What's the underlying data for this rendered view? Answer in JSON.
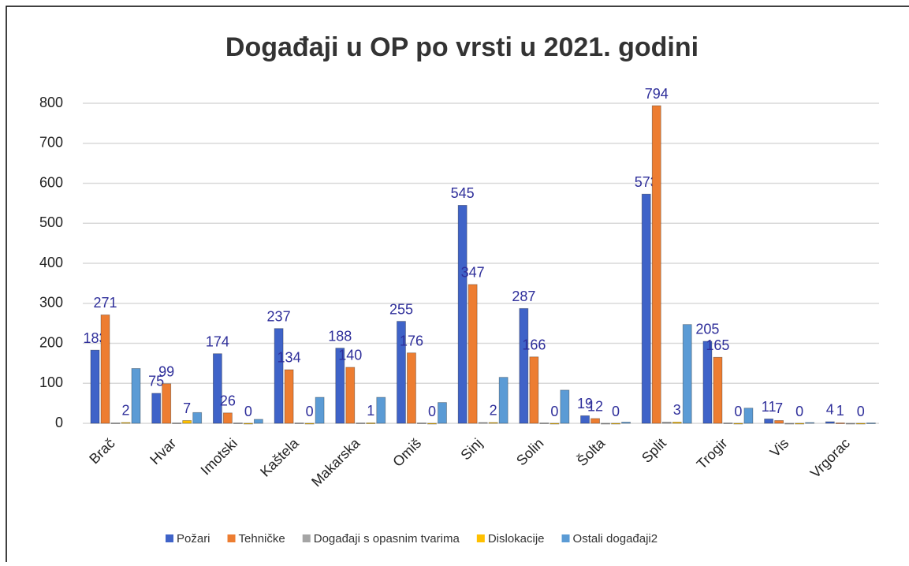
{
  "chart_data": {
    "type": "bar",
    "title": "Događaji u OP po vrsti u 2021. godini",
    "categories": [
      "Brač",
      "Hvar",
      "Imotski",
      "Kaštela",
      "Makarska",
      "Omiš",
      "Sinj",
      "Solin",
      "Šolta",
      "Split",
      "Trogir",
      "Vis",
      "Vrgorac"
    ],
    "series": [
      {
        "name": "Požari",
        "color": "#3f63c8",
        "values": [
          183,
          75,
          174,
          237,
          188,
          255,
          545,
          287,
          19,
          573,
          205,
          11,
          4
        ],
        "labels": true
      },
      {
        "name": "Tehničke",
        "color": "#ed7d31",
        "values": [
          271,
          99,
          26,
          134,
          140,
          176,
          347,
          166,
          12,
          794,
          165,
          7,
          1
        ],
        "labels": true
      },
      {
        "name": "Događaji s opasnim tvarima",
        "color": "#a5a5a5",
        "values": [
          1,
          1,
          1,
          1,
          1,
          1,
          2,
          1,
          0,
          3,
          1,
          0,
          0
        ],
        "labels": false
      },
      {
        "name": "Dislokacije",
        "color": "#ffc000",
        "values": [
          2,
          7,
          0,
          0,
          1,
          0,
          2,
          0,
          0,
          3,
          0,
          0,
          0
        ],
        "labels": true
      },
      {
        "name": "Ostali događaji2",
        "color": "#5b9bd5",
        "values": [
          137,
          27,
          10,
          65,
          65,
          52,
          115,
          83,
          3,
          247,
          38,
          2,
          1
        ],
        "labels": false
      }
    ],
    "ylim": [
      0,
      800
    ],
    "yticks": [
      0,
      100,
      200,
      300,
      400,
      500,
      600,
      700,
      800
    ],
    "grid": true,
    "legend": "bottom"
  }
}
